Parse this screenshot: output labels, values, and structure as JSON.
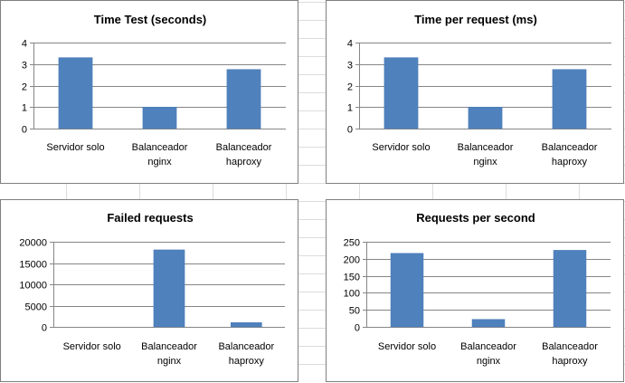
{
  "chart_data": [
    {
      "type": "bar",
      "title": "Time Test (seconds)",
      "categories": [
        [
          "Servidor solo"
        ],
        [
          "Balanceador",
          "nginx"
        ],
        [
          "Balanceador",
          "haproxy"
        ]
      ],
      "values": [
        3.3,
        1.0,
        2.75
      ],
      "ylim": [
        0,
        4
      ],
      "yticks": [
        0,
        1,
        2,
        3,
        4
      ],
      "xlabel": "",
      "ylabel": "",
      "grid": true,
      "legend": "none",
      "bar_color": "#4f81bd"
    },
    {
      "type": "bar",
      "title": "Time per request  (ms)",
      "categories": [
        [
          "Servidor solo"
        ],
        [
          "Balanceador",
          "nginx"
        ],
        [
          "Balanceador",
          "haproxy"
        ]
      ],
      "values": [
        3.3,
        1.0,
        2.75
      ],
      "ylim": [
        0,
        4
      ],
      "yticks": [
        0,
        1,
        2,
        3,
        4
      ],
      "xlabel": "",
      "ylabel": "",
      "grid": true,
      "legend": "none",
      "bar_color": "#4f81bd"
    },
    {
      "type": "bar",
      "title": "Failed requests",
      "categories": [
        [
          "Servidor solo"
        ],
        [
          "Balanceador",
          "nginx"
        ],
        [
          "Balanceador",
          "haproxy"
        ]
      ],
      "values": [
        0,
        18100,
        1000
      ],
      "ylim": [
        0,
        20000
      ],
      "yticks": [
        0,
        5000,
        10000,
        15000,
        20000
      ],
      "xlabel": "",
      "ylabel": "",
      "grid": true,
      "legend": "none",
      "bar_color": "#4f81bd"
    },
    {
      "type": "bar",
      "title": "Requests per second",
      "categories": [
        [
          "Servidor solo"
        ],
        [
          "Balanceador",
          "nginx"
        ],
        [
          "Balanceador",
          "haproxy"
        ]
      ],
      "values": [
        216,
        22,
        225
      ],
      "ylim": [
        0,
        250
      ],
      "yticks": [
        0,
        50,
        100,
        150,
        200,
        250
      ],
      "xlabel": "",
      "ylabel": "",
      "grid": true,
      "legend": "none",
      "bar_color": "#4f81bd"
    }
  ]
}
